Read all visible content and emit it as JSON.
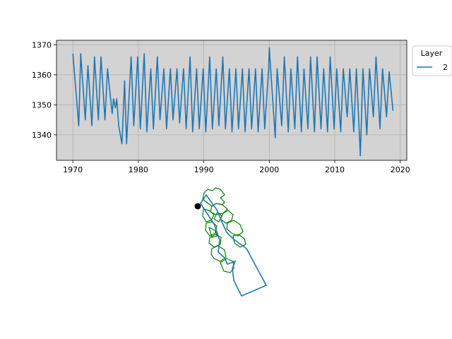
{
  "chart_data": [
    {
      "type": "line",
      "title": "",
      "xlabel": "",
      "ylabel": "",
      "xlim": [
        1967.5,
        2021.0
      ],
      "ylim": [
        1331.5,
        1371.5
      ],
      "xticks": [
        1970,
        1980,
        1990,
        2000,
        2010,
        2020
      ],
      "yticks": [
        1340,
        1350,
        1360,
        1370
      ],
      "grid": true,
      "background": "#d3d3d3",
      "legend": {
        "title": "Layer",
        "placement": "outside-top-right"
      },
      "series": [
        {
          "name": "2",
          "color": "#1f77b4",
          "x": [
            1970.0,
            1970.9,
            1971.2,
            1971.9,
            1972.3,
            1972.9,
            1973.3,
            1973.9,
            1974.3,
            1974.9,
            1975.3,
            1976.0,
            1976.2,
            1976.5,
            1976.7,
            1977.0,
            1977.5,
            1977.9,
            1978.2,
            1978.9,
            1979.3,
            1979.9,
            1980.3,
            1980.9,
            1981.3,
            1981.9,
            1982.3,
            1982.9,
            1983.3,
            1983.9,
            1984.3,
            1984.9,
            1985.3,
            1985.9,
            1986.3,
            1986.9,
            1987.3,
            1987.9,
            1988.3,
            1988.9,
            1989.3,
            1989.9,
            1990.3,
            1990.9,
            1991.3,
            1991.9,
            1992.3,
            1992.9,
            1993.3,
            1993.9,
            1994.3,
            1994.9,
            1995.3,
            1995.9,
            1996.3,
            1996.9,
            1997.3,
            1997.9,
            1998.3,
            1998.9,
            1999.3,
            1999.9,
            2000.0,
            2000.9,
            2001.2,
            2001.9,
            2002.3,
            2002.9,
            2003.3,
            2003.9,
            2004.3,
            2004.9,
            2005.3,
            2005.9,
            2006.3,
            2006.9,
            2007.3,
            2007.9,
            2008.3,
            2008.9,
            2009.3,
            2009.9,
            2010.3,
            2010.9,
            2011.3,
            2011.9,
            2012.3,
            2012.9,
            2013.3,
            2013.9,
            2014.3,
            2014.9,
            2015.3,
            2015.9,
            2016.3,
            2016.9,
            2017.3,
            2017.9,
            2018.3,
            2018.9
          ],
          "y": [
            1367,
            1343,
            1367,
            1345,
            1363,
            1343,
            1366,
            1345,
            1366,
            1345,
            1362,
            1347,
            1352,
            1349,
            1352,
            1343,
            1337,
            1358,
            1337,
            1366,
            1343,
            1366,
            1342,
            1367,
            1341,
            1362,
            1342,
            1366,
            1345,
            1362,
            1342,
            1362,
            1345,
            1362,
            1344,
            1362,
            1342,
            1366,
            1341,
            1362,
            1342,
            1362,
            1341,
            1366,
            1342,
            1362,
            1343,
            1366,
            1342,
            1362,
            1341,
            1362,
            1342,
            1362,
            1341,
            1362,
            1342,
            1362,
            1341,
            1362,
            1342,
            1362,
            1369,
            1339,
            1362,
            1343,
            1366,
            1341,
            1362,
            1342,
            1366,
            1341,
            1362,
            1342,
            1366,
            1341,
            1366,
            1342,
            1362,
            1341,
            1366,
            1342,
            1362,
            1341,
            1362,
            1346,
            1362,
            1341,
            1362,
            1333,
            1362,
            1340,
            1362,
            1346,
            1366,
            1342,
            1362,
            1346,
            1361,
            1348
          ]
        }
      ]
    },
    {
      "type": "map",
      "title": "",
      "outline_color": "#1f77b4",
      "subbasin_color": "#008000",
      "marker_color": "#000000"
    }
  ]
}
